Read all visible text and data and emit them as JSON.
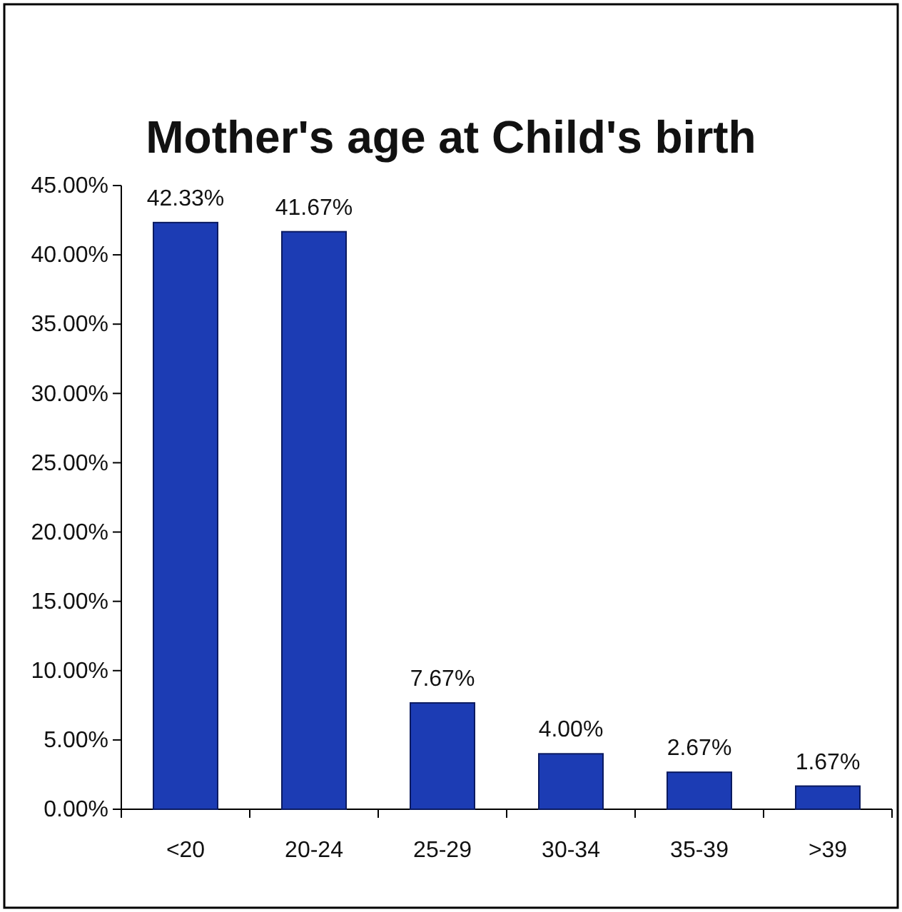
{
  "chart_data": {
    "type": "bar",
    "title": "Mother's age at Child's birth",
    "categories": [
      "<20",
      "20-24",
      "25-29",
      "30-34",
      "35-39",
      ">39"
    ],
    "values": [
      42.33,
      41.67,
      7.67,
      4.0,
      2.67,
      1.67
    ],
    "value_labels": [
      "42.33%",
      "41.67%",
      "7.67%",
      "4.00%",
      "2.67%",
      "1.67%"
    ],
    "color": "#1c3cb4",
    "ylim": [
      0,
      45
    ],
    "yticks": [
      {
        "value": 0,
        "label": "0.00%"
      },
      {
        "value": 5,
        "label": "5.00%"
      },
      {
        "value": 10,
        "label": "10.00%"
      },
      {
        "value": 15,
        "label": "15.00%"
      },
      {
        "value": 20,
        "label": "20.00%"
      },
      {
        "value": 25,
        "label": "25.00%"
      },
      {
        "value": 30,
        "label": "30.00%"
      },
      {
        "value": 35,
        "label": "35.00%"
      },
      {
        "value": 40,
        "label": "40.00%"
      },
      {
        "value": 45,
        "label": "45.00%"
      }
    ],
    "grid": false
  }
}
